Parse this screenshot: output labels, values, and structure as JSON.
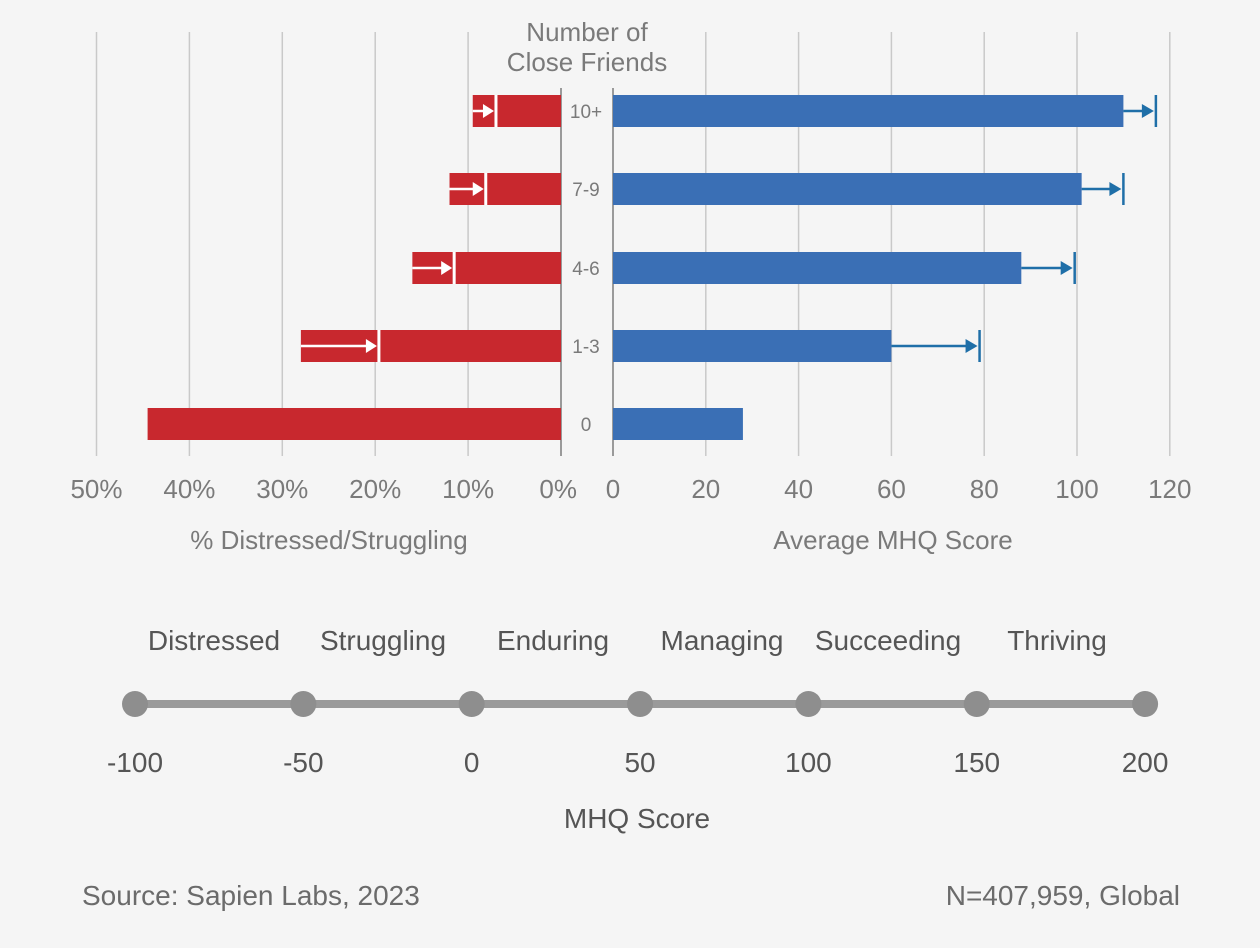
{
  "chart_data": [
    {
      "type": "bar",
      "orientation": "horizontal",
      "category_title": "Number of Close Friends",
      "categories": [
        "10+",
        "7-9",
        "4-6",
        "1-3",
        "0"
      ],
      "xlabel": "% Distressed/Struggling",
      "xlim": [
        50,
        0
      ],
      "ticks": [
        "50%",
        "40%",
        "30%",
        "20%",
        "10%",
        "0%"
      ],
      "tick_values": [
        50,
        40,
        30,
        20,
        10,
        0
      ],
      "series": [
        {
          "values": [
            9.5,
            12,
            16,
            28,
            44.5
          ],
          "color": "#c8282e"
        },
        {
          "values": [
            7,
            8.1,
            11.5,
            19.6,
            null
          ],
          "color": "#ffffff"
        }
      ],
      "grid": true
    },
    {
      "type": "bar",
      "orientation": "horizontal",
      "categories": [
        "10+",
        "7-9",
        "4-6",
        "1-3",
        "0"
      ],
      "xlabel": "Average MHQ Score",
      "xlim": [
        0,
        120
      ],
      "ticks": [
        "0",
        "20",
        "40",
        "60",
        "80",
        "100",
        "120"
      ],
      "tick_values": [
        0,
        20,
        40,
        60,
        80,
        100,
        120
      ],
      "series": [
        {
          "values": [
            110,
            101,
            88,
            60,
            28
          ],
          "color": "#3a6fb5"
        },
        {
          "values": [
            117,
            110,
            99.5,
            79,
            null
          ],
          "color": "#1f6fa8"
        }
      ],
      "grid": true
    }
  ],
  "scale": {
    "labels": [
      "Distressed",
      "Struggling",
      "Enduring",
      "Managing",
      "Succeeding",
      "Thriving"
    ],
    "ticks": [
      "-100",
      "-50",
      "0",
      "50",
      "100",
      "150",
      "200"
    ],
    "tick_values": [
      -100,
      -50,
      0,
      50,
      100,
      150,
      200
    ],
    "title": "MHQ Score"
  },
  "footer": {
    "source": "Source: Sapien Labs, 2023",
    "sample": "N=407,959, Global"
  }
}
